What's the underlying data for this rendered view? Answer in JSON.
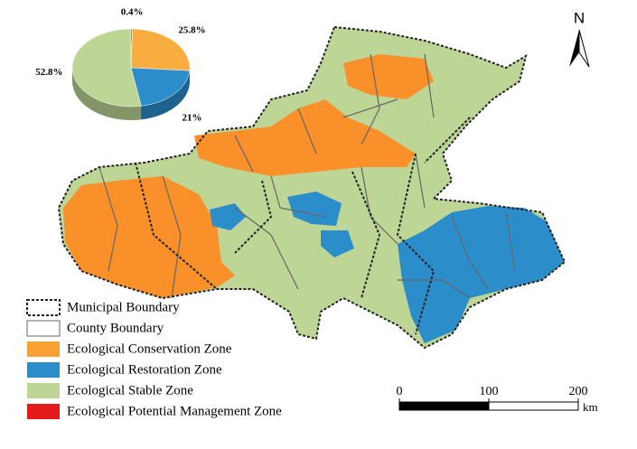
{
  "chart_data": {
    "type": "pie",
    "values": [
      0.4,
      25.8,
      21,
      52.8
    ],
    "value_labels": [
      "0.4%",
      "25.8%",
      "21%",
      "52.8%"
    ],
    "colors": [
      "#e31a1c",
      "#f9ad41",
      "#2b8dca",
      "#bdd595"
    ]
  },
  "legend": {
    "items": [
      {
        "label": "Municipal Boundary"
      },
      {
        "label": "County Boundary"
      },
      {
        "label": "Ecological Conservation Zone",
        "color": "#f9a135"
      },
      {
        "label": "Ecological Restoration Zone",
        "color": "#2b8dca"
      },
      {
        "label": "Ecological Stable Zone",
        "color": "#bdd595"
      },
      {
        "label": "Ecological Potential Management Zone",
        "color": "#e31a1c"
      }
    ]
  },
  "north_arrow": {
    "label": "N"
  },
  "scale_bar": {
    "ticks": [
      0,
      100,
      200
    ],
    "unit": "km"
  }
}
